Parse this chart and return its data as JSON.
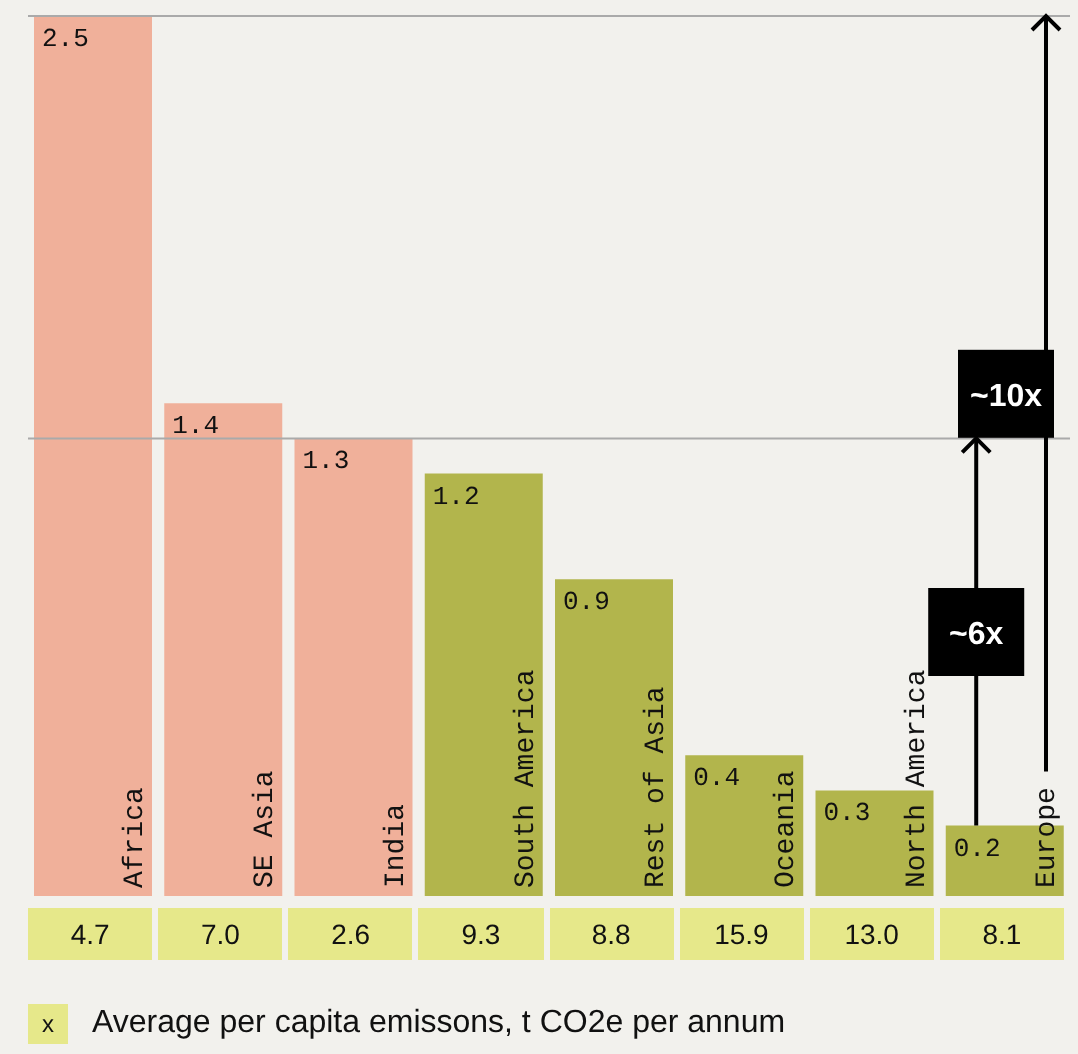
{
  "chart_data": [
    {
      "type": "bar",
      "categories": [
        "Africa",
        "SE Asia",
        "India",
        "South America",
        "Rest of Asia",
        "Oceania",
        "North America",
        "Europe"
      ],
      "values": [
        2.5,
        1.4,
        1.3,
        1.2,
        0.9,
        0.4,
        0.3,
        0.2
      ],
      "colors": [
        "#f0b09a",
        "#f0b09a",
        "#f0b09a",
        "#b2b54c",
        "#b2b54c",
        "#b2b54c",
        "#b2b54c",
        "#b2b54c"
      ],
      "ylim": [
        0,
        2.5
      ],
      "tick_labels": false,
      "data_labels": true,
      "ref_lines": [
        {
          "axis": "y",
          "value": 1.3,
          "color": "#aaaaaa"
        },
        {
          "axis": "y",
          "value": 2.5,
          "color": "#aaaaaa"
        }
      ],
      "annotations": [
        "~6x",
        "~10x"
      ]
    },
    {
      "type": "other",
      "series": [
        {
          "name": "Average per capita emissons, t CO2e per annum",
          "color": "#e6e88a",
          "values": [
            4.7,
            7.0,
            2.6,
            9.3,
            8.8,
            15.9,
            13.0,
            8.1
          ],
          "value_labels": [
            "4.7",
            "7.0",
            "2.6",
            "9.3",
            "8.8",
            "15.9",
            "13.0",
            "8.1"
          ]
        }
      ],
      "legend": "bottom",
      "annotations": [
        "x"
      ]
    }
  ]
}
